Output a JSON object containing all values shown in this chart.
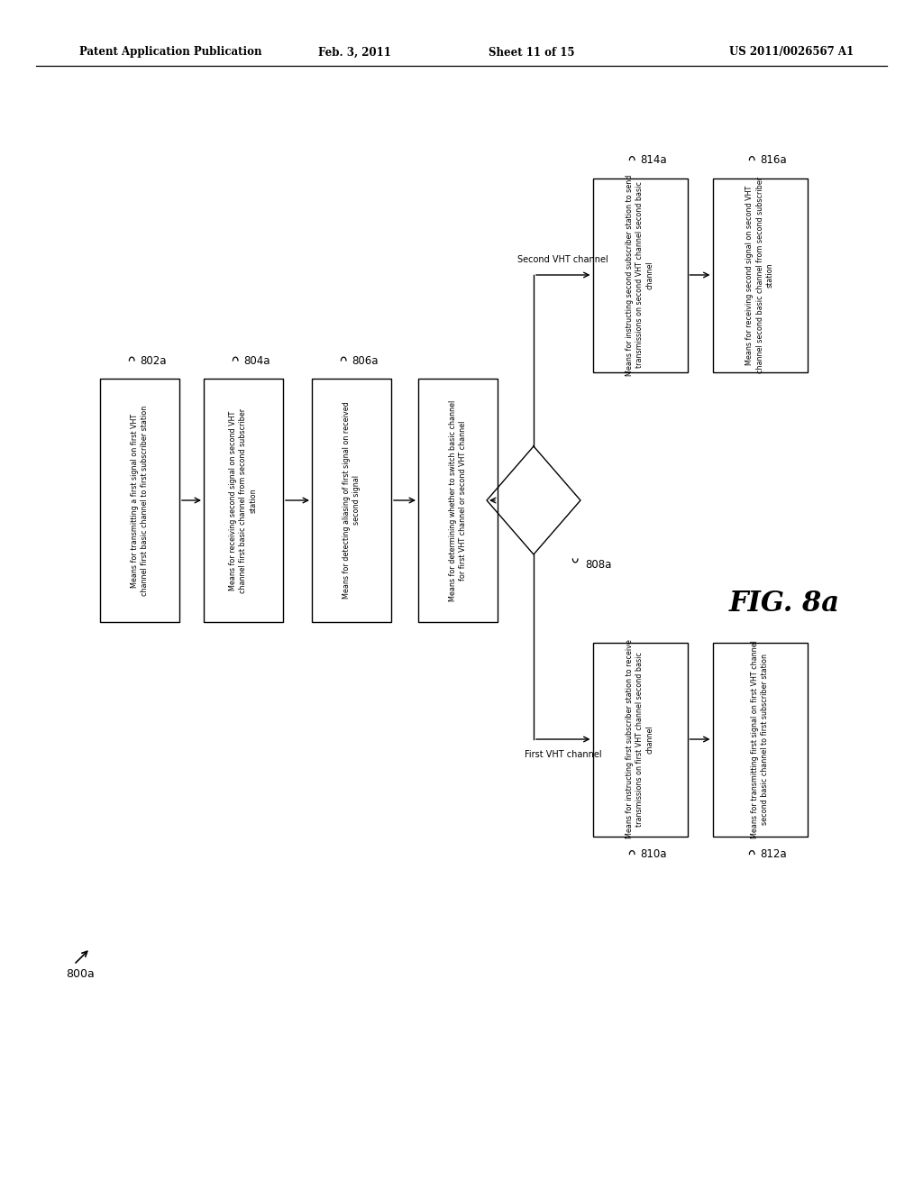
{
  "bg": "#ffffff",
  "header_left": "Patent Application Publication",
  "header_c1": "Feb. 3, 2011",
  "header_c2": "Sheet 11 of 15",
  "header_right": "US 2011/0026567 A1",
  "fig_label": "FIG. 8a",
  "ref_800a": "800a",
  "box_802a_text": "Means for transmitting a first signal on first VHT\nchannel first basic channel to first subscriber station",
  "box_804a_text": "Means for receiving second signal on second VHT\nchannel first basic channel from second subscriber\nstation",
  "box_806a_text": "Means for detecting aliasing of first signal on received\nsecond signal",
  "box_det_text": "Means for determining whether to switch basic channel\nfor first VHT channel or second VHT channel",
  "box_814a_text": "Means for instructing second subscriber station to send\ntransmissions on second VHT channel second basic\nchannel",
  "box_816a_text": "Means for receiving second signal on second VHT\nchannel second basic channel from second subscriber\nstation",
  "box_810a_text": "Means for instructing first subscriber station to receive\ntransmissions on first VHT channel second basic\nchannel",
  "box_812a_text": "Means for transmitting first signal on first VHT channel\nsecond basic channel to first subscriber station",
  "label_second_vht": "Second VHT channel",
  "label_first_vht": "First VHT channel",
  "label_808a": "808a",
  "label_802a": "802a",
  "label_804a": "804a",
  "label_806a": "806a",
  "label_814a": "814a",
  "label_816a": "816a",
  "label_810a": "810a",
  "label_812a": "812a"
}
